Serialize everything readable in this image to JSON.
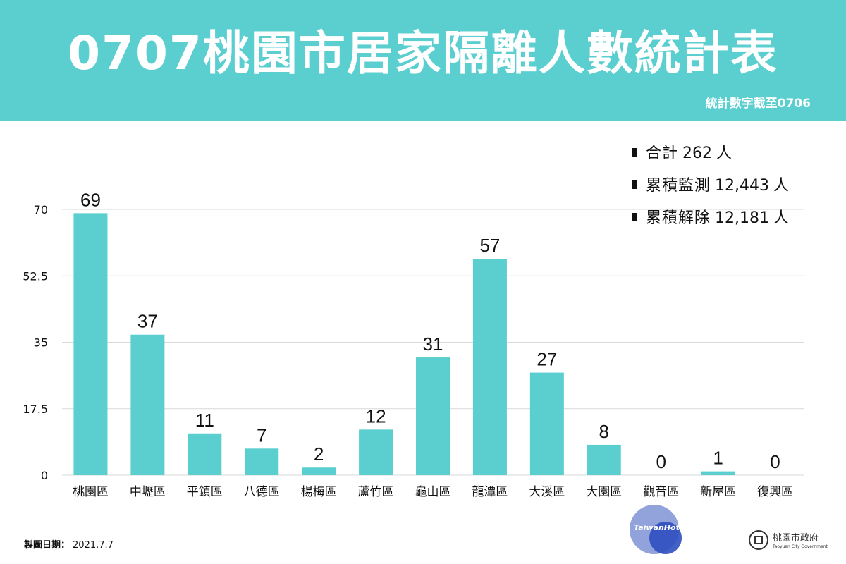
{
  "header": {
    "title": "0707桃園市居家隔離人數統計表",
    "subtitle": "統計數字截至0706",
    "color": "#5bcfd0"
  },
  "stats": [
    {
      "label": "合計",
      "value": "262",
      "unit": "人"
    },
    {
      "label": "累積監測",
      "value": "12,443",
      "unit": "人"
    },
    {
      "label": "累積解除",
      "value": "12,181",
      "unit": "人"
    }
  ],
  "chart_data": {
    "type": "bar",
    "categories": [
      "桃園區",
      "中壢區",
      "平鎮區",
      "八德區",
      "楊梅區",
      "蘆竹區",
      "龜山區",
      "龍潭區",
      "大溪區",
      "大園區",
      "觀音區",
      "新屋區",
      "復興區"
    ],
    "values": [
      69,
      37,
      11,
      7,
      2,
      12,
      31,
      57,
      27,
      8,
      0,
      1,
      0
    ],
    "ylim": [
      0,
      70
    ],
    "yticks": [
      "0",
      "17.5",
      "35",
      "52.5",
      "70"
    ],
    "grid": true,
    "bar_color": "#5bcfd0"
  },
  "footer": {
    "date_label": "製圖日期：",
    "date_value": "2021.7.7"
  },
  "watermark": {
    "text": "TaiwanHot"
  },
  "logo": {
    "name": "桃園市政府",
    "english": "Taoyuan City Government"
  }
}
